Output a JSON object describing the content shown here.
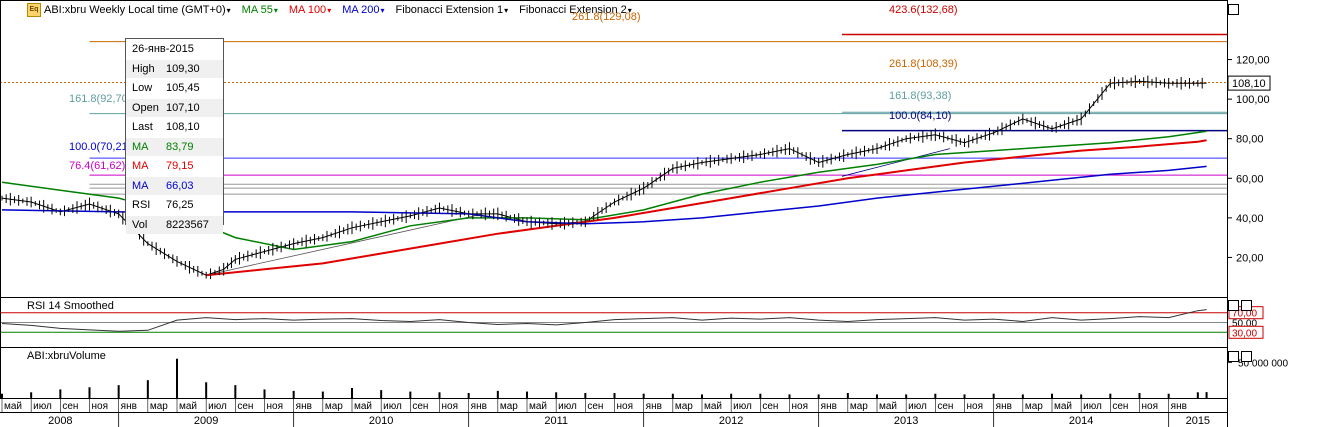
{
  "header": {
    "symbol": "ABI:xbru Weekly Local time (GMT+0)",
    "ma55": "MA 55",
    "ma100": "MA 100",
    "ma200": "MA 200",
    "fib1": "Fibonacci Extension 1",
    "fib2": "Fibonacci Extension 2",
    "logo_text": "Eq"
  },
  "info_box": {
    "date": "26-янв-2015",
    "rows": [
      {
        "k": "High",
        "v": "109,30"
      },
      {
        "k": "Low",
        "v": "105,45"
      },
      {
        "k": "Open",
        "v": "107,10"
      },
      {
        "k": "Last",
        "v": "108,10"
      },
      {
        "k": "MA",
        "v": "83,79"
      },
      {
        "k": "MA",
        "v": "79,15"
      },
      {
        "k": "MA",
        "v": "66,03"
      },
      {
        "k": "RSI",
        "v": "76,25"
      },
      {
        "k": "Vol",
        "v": "8223567"
      }
    ],
    "colors": [
      "#000000",
      "#000000",
      "#000000",
      "#000000",
      "#008000",
      "#e00000",
      "#0000cc",
      "#000000",
      "#000000"
    ]
  },
  "fib_labels": {
    "a423": "423.6(132,68)",
    "a261": "261.8(129,08)",
    "b261": "261.8(108,39)",
    "b161": "161.8(93,38)",
    "b100": "100.0(84,10)",
    "a161": "161.8(92,70)",
    "a100": "100.0(70,21)",
    "a764": "76.4(61,62)"
  },
  "rsi_panel": {
    "title": "RSI 14 Smoothed",
    "upper_label": "70,00",
    "mid_label": "50,00",
    "lower_label": "30,00"
  },
  "volume_panel": {
    "title": "ABI:xbruVolume",
    "tick_label": "50 000 000"
  },
  "colors": {
    "ma55": "#008000",
    "ma100": "#e00000",
    "ma200": "#0000cc",
    "fib_orange": "#cc6600",
    "fib_red": "#cc0000",
    "fib_teal": "#5f9ea0",
    "fib_navy": "#000080",
    "fib_purple": "#cc00cc",
    "fib_blue": "#3333ff",
    "fib_gray": "#555555"
  },
  "chart_data": [
    {
      "type": "line",
      "ylim": [
        0,
        140
      ],
      "y_ticks": [
        "20,00",
        "40,00",
        "60,00",
        "80,00",
        "100,00",
        "120,00"
      ],
      "last_price_label": "108,10",
      "last_price": 108.1,
      "x_months": [
        "май",
        "июл",
        "сен",
        "ноя",
        "янв",
        "мар",
        "май",
        "июл",
        "сен",
        "ноя",
        "янв",
        "мар",
        "май",
        "июл",
        "сен",
        "ноя",
        "янв",
        "мар",
        "май",
        "июл",
        "сен",
        "ноя",
        "янв",
        "мар",
        "май",
        "июл",
        "сен",
        "ноя",
        "янв",
        "мар",
        "май",
        "июл",
        "сен",
        "ноя",
        "янв",
        "мар",
        "май",
        "июл",
        "сен",
        "ноя",
        "янв"
      ],
      "x_years": [
        "2008",
        "2009",
        "2010",
        "2011",
        "2012",
        "2013",
        "2014",
        "2015"
      ],
      "series": [
        {
          "name": "ABI:xbru",
          "x": [
            0,
            1,
            2,
            3,
            4,
            5,
            6,
            7,
            7.6,
            8,
            9,
            10,
            11,
            12,
            13,
            14,
            15,
            16,
            17,
            18,
            19,
            20,
            21,
            22,
            23,
            24,
            25,
            26,
            27,
            28,
            29,
            30,
            31,
            32,
            33,
            34,
            35,
            36,
            37,
            38,
            39,
            40,
            41,
            41.3
          ],
          "values": [
            50,
            48,
            43,
            47,
            42,
            27,
            18,
            11,
            14,
            19,
            23,
            27,
            30,
            35,
            38,
            41,
            45,
            42,
            42,
            38,
            37,
            38,
            48,
            55,
            65,
            68,
            70,
            72,
            75,
            68,
            72,
            75,
            80,
            82,
            78,
            83,
            90,
            85,
            90,
            108,
            109,
            108,
            108,
            108.1
          ]
        },
        {
          "name": "MA 55",
          "x": [
            0,
            2,
            4,
            6,
            8,
            10,
            12,
            14,
            16,
            18,
            20,
            22,
            24,
            26,
            28,
            30,
            32,
            34,
            36,
            38,
            40,
            41.3
          ],
          "values": [
            58,
            54,
            50,
            42,
            30,
            24,
            28,
            36,
            40,
            40,
            39,
            44,
            52,
            58,
            63,
            67,
            72,
            74,
            76,
            78,
            81,
            83.8
          ]
        },
        {
          "name": "MA 100",
          "x": [
            7,
            9,
            11,
            13,
            15,
            17,
            19,
            21,
            23,
            25,
            27,
            29,
            31,
            33,
            35,
            37,
            39,
            41,
            41.3
          ],
          "values": [
            11,
            14,
            17,
            22,
            27,
            32,
            36,
            40,
            45,
            50,
            55,
            60,
            64,
            68,
            71,
            74,
            76,
            78.5,
            79.2
          ]
        },
        {
          "name": "MA 200",
          "x": [
            0,
            4,
            8,
            12,
            16,
            18,
            20,
            22,
            24,
            26,
            28,
            30,
            32,
            34,
            36,
            38,
            40,
            41.3
          ],
          "values": [
            44,
            43,
            43,
            43,
            42,
            38,
            37,
            38,
            40,
            43,
            46,
            50,
            53,
            56,
            59,
            62,
            64,
            66
          ]
        }
      ],
      "fib_levels": [
        {
          "name": "423.6",
          "value": 132.68,
          "start_month": 28.8
        },
        {
          "name": "261.8",
          "value": 129.08,
          "start_month": 3
        },
        {
          "name": "261.8",
          "value": 108.39,
          "start_month": 0
        },
        {
          "name": "161.8",
          "value": 93.38,
          "start_month": 28.8
        },
        {
          "name": "100.0",
          "value": 84.1,
          "start_month": 28.8
        },
        {
          "name": "161.8",
          "value": 92.7,
          "start_month": 3
        },
        {
          "name": "100.0",
          "value": 70.21,
          "start_month": 3
        },
        {
          "name": "76.4",
          "value": 61.62,
          "start_month": 3
        },
        {
          "name": "",
          "value": 57.0,
          "start_month": 3
        },
        {
          "name": "",
          "value": 55.0,
          "start_month": 3
        },
        {
          "name": "",
          "value": 52.0,
          "start_month": 3
        }
      ]
    },
    {
      "type": "line",
      "ylim": [
        0,
        100
      ],
      "y_ticks": [
        "30,00",
        "50,00",
        "70,00"
      ],
      "series": [
        {
          "name": "RSI 14 Smoothed",
          "x": [
            0,
            1,
            2,
            3,
            4,
            5,
            6,
            7,
            8,
            9,
            10,
            11,
            12,
            13,
            14,
            15,
            16,
            17,
            18,
            19,
            20,
            21,
            22,
            23,
            24,
            25,
            26,
            27,
            28,
            29,
            30,
            31,
            32,
            33,
            34,
            35,
            36,
            37,
            38,
            39,
            40,
            41,
            41.3
          ],
          "values": [
            48,
            44,
            38,
            35,
            32,
            34,
            55,
            60,
            56,
            58,
            55,
            57,
            58,
            54,
            52,
            56,
            50,
            46,
            48,
            45,
            50,
            56,
            58,
            60,
            55,
            59,
            57,
            60,
            55,
            52,
            56,
            58,
            60,
            55,
            57,
            52,
            60,
            55,
            58,
            62,
            60,
            74,
            76.25
          ]
        }
      ]
    },
    {
      "type": "bar",
      "ylim": [
        0,
        70000000
      ],
      "y_ticks": [
        "50 000 000"
      ],
      "series": [
        {
          "name": "Volume",
          "x": [
            0,
            1,
            2,
            3,
            4,
            5,
            6,
            7,
            8,
            9,
            10,
            11,
            12,
            13,
            14,
            15,
            16,
            17,
            18,
            19,
            20,
            21,
            22,
            23,
            24,
            25,
            26,
            27,
            28,
            29,
            30,
            31,
            32,
            33,
            34,
            35,
            36,
            37,
            38,
            39,
            40,
            41,
            41.3
          ],
          "values": [
            6000000,
            8000000,
            12000000,
            15000000,
            18000000,
            25000000,
            55000000,
            22000000,
            18000000,
            12000000,
            10000000,
            9000000,
            14000000,
            11000000,
            9000000,
            8000000,
            7000000,
            10000000,
            9000000,
            8000000,
            7000000,
            7000000,
            6000000,
            6000000,
            5000000,
            6000000,
            6000000,
            5000000,
            5000000,
            7000000,
            5000000,
            5000000,
            6000000,
            5000000,
            6000000,
            5000000,
            6000000,
            5000000,
            6000000,
            7000000,
            6000000,
            8000000,
            8223567
          ]
        }
      ]
    }
  ]
}
